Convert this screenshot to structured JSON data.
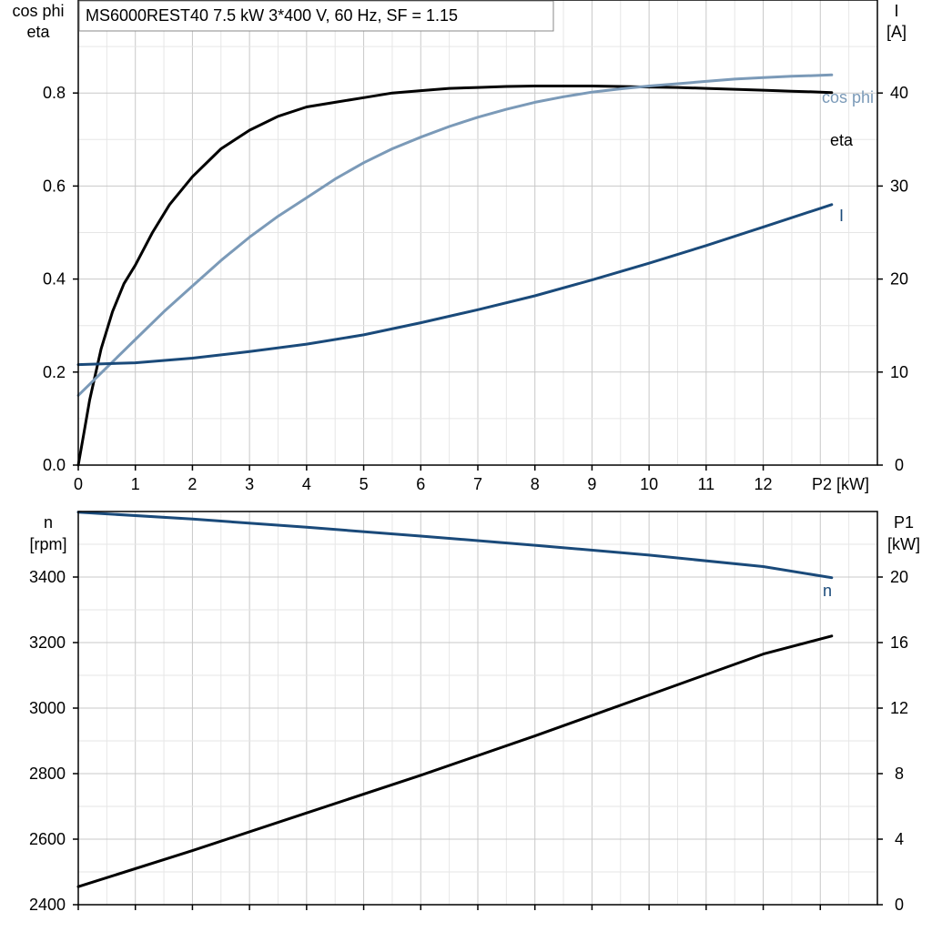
{
  "chart_data": [
    {
      "type": "line",
      "title": "MS6000REST40   7.5 kW   3*400 V, 60 Hz, SF = 1.15",
      "xlabel": "P2 [kW]",
      "x_ticks": [
        0,
        1,
        2,
        3,
        4,
        5,
        6,
        7,
        8,
        9,
        10,
        11,
        12
      ],
      "xlim": [
        0,
        14
      ],
      "y_left": {
        "label_line1": "cos phi",
        "label_line2": "eta",
        "lim": [
          0,
          1.0
        ],
        "ticks": [
          "0.0",
          "0.2",
          "0.4",
          "0.6",
          "0.8"
        ],
        "tick_values": [
          0,
          0.2,
          0.4,
          0.6,
          0.8
        ]
      },
      "y_right": {
        "label_line1": "I",
        "label_line2": "[A]",
        "lim": [
          0,
          50
        ],
        "ticks": [
          "0",
          "10",
          "20",
          "30",
          "40"
        ],
        "tick_values": [
          0,
          10,
          20,
          30,
          40
        ]
      },
      "grid": true,
      "series": [
        {
          "name": "eta",
          "axis": "left",
          "color": "#000000",
          "x": [
            0,
            0.1,
            0.2,
            0.4,
            0.6,
            0.8,
            1.0,
            1.3,
            1.6,
            2.0,
            2.5,
            3.0,
            3.5,
            4.0,
            4.5,
            5.0,
            5.5,
            6.0,
            6.5,
            7.0,
            7.5,
            8.0,
            8.5,
            9.0,
            9.5,
            10.0,
            10.5,
            11.0,
            11.5,
            12.0,
            12.5,
            13.0,
            13.2
          ],
          "y": [
            0.0,
            0.07,
            0.14,
            0.25,
            0.33,
            0.39,
            0.43,
            0.5,
            0.56,
            0.62,
            0.68,
            0.72,
            0.75,
            0.77,
            0.78,
            0.79,
            0.8,
            0.805,
            0.81,
            0.812,
            0.814,
            0.815,
            0.815,
            0.815,
            0.814,
            0.813,
            0.812,
            0.81,
            0.808,
            0.806,
            0.804,
            0.802,
            0.801
          ]
        },
        {
          "name": "cos phi",
          "axis": "left",
          "color": "#7b9ab8",
          "x": [
            0,
            0.5,
            1.0,
            1.5,
            2.0,
            2.5,
            3.0,
            3.5,
            4.0,
            4.5,
            5.0,
            5.5,
            6.0,
            6.5,
            7.0,
            7.5,
            8.0,
            8.5,
            9.0,
            9.5,
            10.0,
            10.5,
            11.0,
            11.5,
            12.0,
            12.5,
            13.0,
            13.2
          ],
          "y": [
            0.15,
            0.21,
            0.27,
            0.33,
            0.385,
            0.44,
            0.49,
            0.535,
            0.575,
            0.615,
            0.65,
            0.68,
            0.705,
            0.728,
            0.748,
            0.765,
            0.78,
            0.792,
            0.802,
            0.809,
            0.815,
            0.82,
            0.825,
            0.83,
            0.833,
            0.836,
            0.838,
            0.839
          ]
        },
        {
          "name": "I",
          "axis": "right",
          "color": "#1a4a7a",
          "x": [
            0,
            1,
            2,
            3,
            4,
            5,
            6,
            7,
            8,
            9,
            10,
            11,
            12,
            13,
            13.2
          ],
          "y": [
            10.8,
            11.0,
            11.5,
            12.2,
            13.0,
            14.0,
            15.3,
            16.7,
            18.2,
            19.9,
            21.7,
            23.6,
            25.6,
            27.6,
            28.0
          ]
        }
      ]
    },
    {
      "type": "line",
      "xlim": [
        0,
        14
      ],
      "y_left": {
        "label_line1": "n",
        "label_line2": "[rpm]",
        "lim": [
          2400,
          3600
        ],
        "ticks": [
          "2400",
          "2600",
          "2800",
          "3000",
          "3200",
          "3400"
        ],
        "tick_values": [
          2400,
          2600,
          2800,
          3000,
          3200,
          3400
        ]
      },
      "y_right": {
        "label_line1": "P1",
        "label_line2": "[kW]",
        "lim": [
          0,
          24
        ],
        "ticks": [
          "0",
          "4",
          "8",
          "12",
          "16",
          "20"
        ],
        "tick_values": [
          0,
          4,
          8,
          12,
          16,
          20
        ]
      },
      "grid": true,
      "series": [
        {
          "name": "n",
          "axis": "left",
          "color": "#1a4a7a",
          "x": [
            0,
            2,
            4,
            6,
            8,
            10,
            12,
            13.2
          ],
          "y": [
            3598,
            3577,
            3552,
            3525,
            3497,
            3467,
            3432,
            3398
          ]
        },
        {
          "name": "",
          "axis": "right",
          "color": "#000000",
          "x": [
            0,
            2,
            4,
            6,
            8,
            10,
            12,
            13.2
          ],
          "y": [
            1.1,
            3.3,
            5.6,
            7.9,
            10.3,
            12.8,
            15.3,
            16.4
          ]
        }
      ]
    }
  ]
}
